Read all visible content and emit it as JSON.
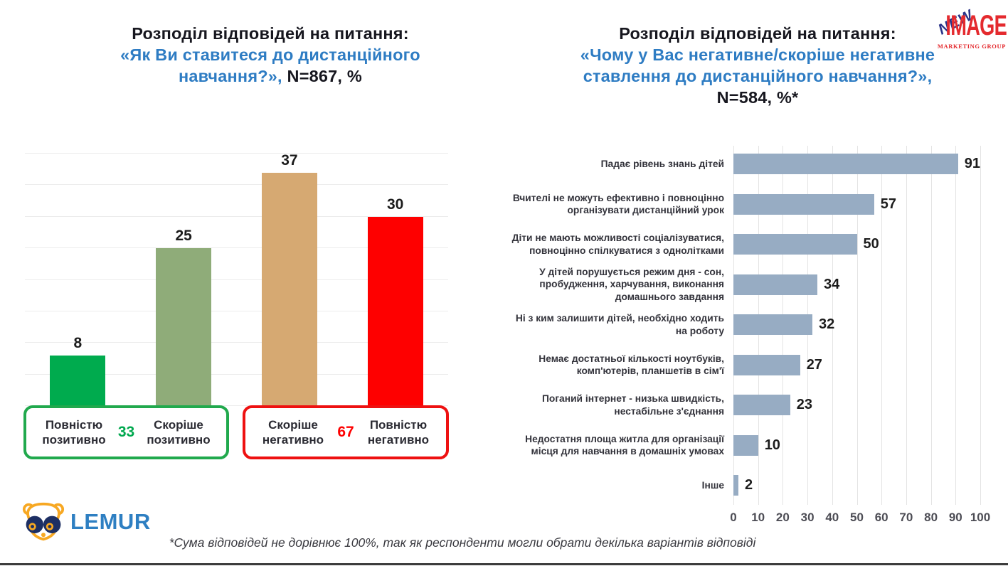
{
  "page": {
    "footnote": "*Сума відповідей не дорівнює 100%, так як респонденти могли обрати декілька варіантів відповіді"
  },
  "logos": {
    "lemur_text": "LEMUR",
    "new_image": {
      "new": "NEW",
      "image": "IMAGE",
      "subtitle": "MARKETING GROUP"
    }
  },
  "colors": {
    "title_dark": "#17171f",
    "title_blue": "#2e7cc3",
    "grid_left": "#ececec",
    "grid_right": "#e4e4e4",
    "value_label": "#1b1b1b",
    "green_accent": "#21a94d",
    "red_accent": "#ee1111"
  },
  "chart_data": [
    {
      "type": "bar",
      "orientation": "vertical",
      "title": "Розподіл відповідей на питання: «Як Ви ставитеся до дистанційного навчання?», N=867, %",
      "title_lines": [
        "Розподіл відповідей на питання:",
        "«Як Ви ставитеся до дистанційного",
        "навчання?»,",
        " N=867, %"
      ],
      "categories": [
        "Повністю позитивно",
        "Скоріше позитивно",
        "Скоріше негативно",
        "Повністю негативно"
      ],
      "values": [
        8,
        25,
        37,
        30
      ],
      "bar_colors": [
        "#00ab4e",
        "#8fac79",
        "#d6a972",
        "#fe0000"
      ],
      "ylim": [
        0,
        40
      ],
      "grid_step": 5,
      "grid": true,
      "groups": [
        {
          "labels": [
            "Повністю позитивно",
            "Скоріше позитивно"
          ],
          "total": 33,
          "color": "#21a94d"
        },
        {
          "labels": [
            "Скоріше негативно",
            "Повністю негативно"
          ],
          "total": 67,
          "color": "#ee1111"
        }
      ]
    },
    {
      "type": "bar",
      "orientation": "horizontal",
      "title": "Розподіл відповідей на питання: «Чому у Вас негативне/скоріше негативне ставлення до дистанційного навчання?», N=584, %*",
      "title_lines": [
        "Розподіл відповідей на питання:",
        "«Чому у Вас негативне/скоріше негативне",
        "ставлення до дистанційного навчання?»,",
        "N=584, %*"
      ],
      "categories": [
        "Падає рівень знань дітей",
        "Вчителі не можуть ефективно і повноцінно\nорганізувати дистанційний урок",
        "Діти не мають можливості соціалізуватися,\nповноцінно спілкуватися з однолітками",
        "У дітей порушується режим дня - сон,\nпробудження, харчування, виконання\nдомашнього завдання",
        "Ні з ким залишити дітей, необхідно ходить\nна роботу",
        "Немає достатньої кількості ноутбуків,\nкомп'ютерів, планшетів в сім'ї",
        "Поганий інтернет - низька швидкість,\nнестабільне з'єднання",
        "Недостатня площа житла для організації\nмісця для навчання в домашніх умовах",
        "Інше"
      ],
      "values": [
        91,
        57,
        50,
        34,
        32,
        27,
        23,
        10,
        2
      ],
      "bar_color": "#97acc3",
      "xlim": [
        0,
        100
      ],
      "xticks": [
        0,
        10,
        20,
        30,
        40,
        50,
        60,
        70,
        80,
        90,
        100
      ],
      "grid": true
    }
  ]
}
